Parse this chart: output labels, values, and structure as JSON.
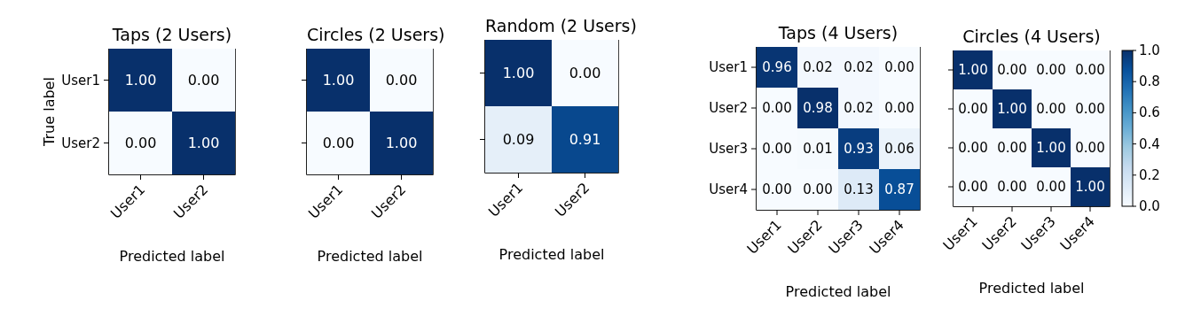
{
  "chart_data": [
    {
      "type": "heatmap",
      "title": "Taps (2 Users)",
      "xlabel": "Predicted label",
      "ylabel": "True label",
      "categories": [
        "User1",
        "User2"
      ],
      "y_categories": [
        "User1",
        "User2"
      ],
      "cells": [
        [
          1.0,
          0.0
        ],
        [
          0.0,
          1.0
        ]
      ],
      "cell_labels": [
        [
          "1.00",
          "0.00"
        ],
        [
          "0.00",
          "1.00"
        ]
      ]
    },
    {
      "type": "heatmap",
      "title": "Circles (2 Users)",
      "xlabel": "Predicted label",
      "categories": [
        "User1",
        "User2"
      ],
      "y_categories": [
        null,
        null
      ],
      "cells": [
        [
          1.0,
          0.0
        ],
        [
          0.0,
          1.0
        ]
      ],
      "cell_labels": [
        [
          "1.00",
          "0.00"
        ],
        [
          "0.00",
          "1.00"
        ]
      ]
    },
    {
      "type": "heatmap",
      "title": "Random (2 Users)",
      "xlabel": "Predicted label",
      "categories": [
        "User1",
        "User2"
      ],
      "y_categories": [
        null,
        null
      ],
      "cells": [
        [
          1.0,
          0.0
        ],
        [
          0.09,
          0.91
        ]
      ],
      "cell_labels": [
        [
          "1.00",
          "0.00"
        ],
        [
          "0.09",
          "0.91"
        ]
      ]
    },
    {
      "type": "heatmap",
      "title": "Taps (4 Users)",
      "xlabel": "Predicted label",
      "categories": [
        "User1",
        "User2",
        "User3",
        "User4"
      ],
      "y_categories": [
        "User1",
        "User2",
        "User3",
        "User4"
      ],
      "cells": [
        [
          0.96,
          0.02,
          0.02,
          0.0
        ],
        [
          0.0,
          0.98,
          0.02,
          0.0
        ],
        [
          0.0,
          0.01,
          0.93,
          0.06
        ],
        [
          0.0,
          0.0,
          0.13,
          0.87
        ]
      ],
      "cell_labels": [
        [
          "0.96",
          "0.02",
          "0.02",
          "0.00"
        ],
        [
          "0.00",
          "0.98",
          "0.02",
          "0.00"
        ],
        [
          "0.00",
          "0.01",
          "0.93",
          "0.06"
        ],
        [
          "0.00",
          "0.00",
          "0.13",
          "0.87"
        ]
      ]
    },
    {
      "type": "heatmap",
      "title": "Circles (4 Users)",
      "xlabel": "Predicted label",
      "categories": [
        "User1",
        "User2",
        "User3",
        "User4"
      ],
      "y_categories": [
        null,
        null,
        null,
        null
      ],
      "cells": [
        [
          1.0,
          0.0,
          0.0,
          0.0
        ],
        [
          0.0,
          1.0,
          0.0,
          0.0
        ],
        [
          0.0,
          0.0,
          1.0,
          0.0
        ],
        [
          0.0,
          0.0,
          0.0,
          1.0
        ]
      ],
      "cell_labels": [
        [
          "1.00",
          "0.00",
          "0.00",
          "0.00"
        ],
        [
          "0.00",
          "1.00",
          "0.00",
          "0.00"
        ],
        [
          "0.00",
          "0.00",
          "1.00",
          "0.00"
        ],
        [
          "0.00",
          "0.00",
          "0.00",
          "1.00"
        ]
      ],
      "clim": [
        0,
        1
      ],
      "cticks": [
        {
          "value": 0,
          "label": "0.0"
        },
        0.2,
        0.4,
        0.6,
        0.8,
        {
          "value": 1,
          "label": "1.0"
        }
      ]
    }
  ]
}
